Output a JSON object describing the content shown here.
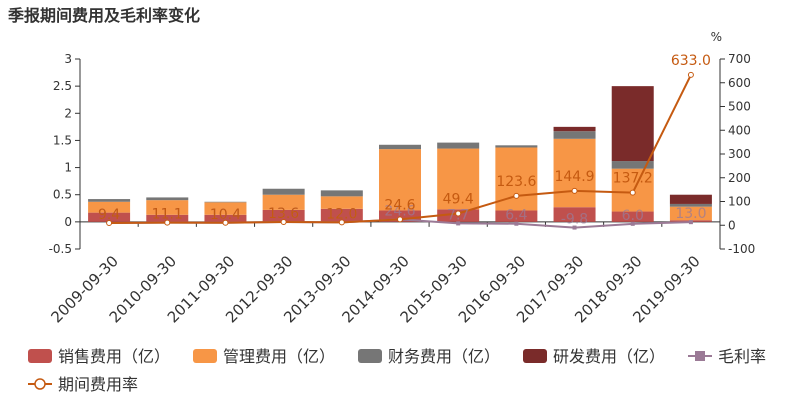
{
  "chart_data": {
    "type": "bar",
    "title": "季报期间费用及毛利率变化",
    "stacked": true,
    "categories": [
      "2009-09-30",
      "2010-09-30",
      "2011-09-30",
      "2012-09-30",
      "2013-09-30",
      "2014-09-30",
      "2015-09-30",
      "2016-09-30",
      "2017-09-30",
      "2018-09-30",
      "2019-09-30"
    ],
    "series": [
      {
        "name": "销售费用（亿）",
        "type": "bar",
        "axis": "left",
        "color": "#c0504d",
        "values": [
          0.17,
          0.13,
          0.13,
          0.22,
          0.24,
          0.21,
          0.23,
          0.21,
          0.27,
          0.19,
          0.03
        ]
      },
      {
        "name": "管理费用（亿）",
        "type": "bar",
        "axis": "left",
        "color": "#f79646",
        "values": [
          0.2,
          0.27,
          0.23,
          0.28,
          0.23,
          1.13,
          1.12,
          1.16,
          1.26,
          0.79,
          0.25
        ]
      },
      {
        "name": "财务费用（亿）",
        "type": "bar",
        "axis": "left",
        "color": "#767676",
        "values": [
          0.05,
          0.05,
          0.01,
          0.11,
          0.11,
          0.08,
          0.11,
          0.04,
          0.14,
          0.14,
          0.05
        ]
      },
      {
        "name": "研发费用（亿）",
        "type": "bar",
        "axis": "left",
        "color": "#7a2b2a",
        "values": [
          0,
          0,
          0,
          0,
          0,
          0,
          0,
          0,
          0.08,
          1.38,
          0.17
        ]
      },
      {
        "name": "毛利率",
        "type": "line",
        "axis": "right",
        "color": "#9b7a96",
        "marker": "square",
        "values": [
          9.4,
          11.1,
          10.4,
          13.6,
          12.0,
          24.6,
          7.7,
          6.4,
          -9.8,
          6.0,
          13.0
        ],
        "labels": [
          "9.4",
          "11.1",
          "10.4",
          "13.6",
          "12.0",
          "24.6",
          "7.7",
          "6.4",
          "-9.8",
          "6.0",
          "13.0"
        ]
      },
      {
        "name": "期间费用率",
        "type": "line",
        "axis": "right",
        "color": "#c55a11",
        "marker": "circle",
        "values": [
          9.4,
          11.1,
          10.4,
          13.6,
          12.0,
          24.6,
          49.4,
          123.6,
          144.9,
          137.2,
          633.0
        ],
        "labels": [
          "9.4",
          "11.1",
          "10.4",
          "13.6",
          "12.0",
          "24.6",
          "49.4",
          "123.6",
          "144.9",
          "137.2",
          "633.0"
        ]
      }
    ],
    "y_left": {
      "min": -0.5,
      "max": 3,
      "step": 0.5,
      "ticks": [
        "-0.5",
        "0",
        "0.5",
        "1",
        "1.5",
        "2",
        "2.5",
        "3"
      ]
    },
    "y_right": {
      "min": -100,
      "max": 700,
      "step": 100,
      "unit": "%",
      "ticks": [
        "-100",
        "0",
        "100",
        "200",
        "300",
        "400",
        "500",
        "600",
        "700"
      ]
    },
    "grid": false,
    "legend_position": "bottom"
  }
}
